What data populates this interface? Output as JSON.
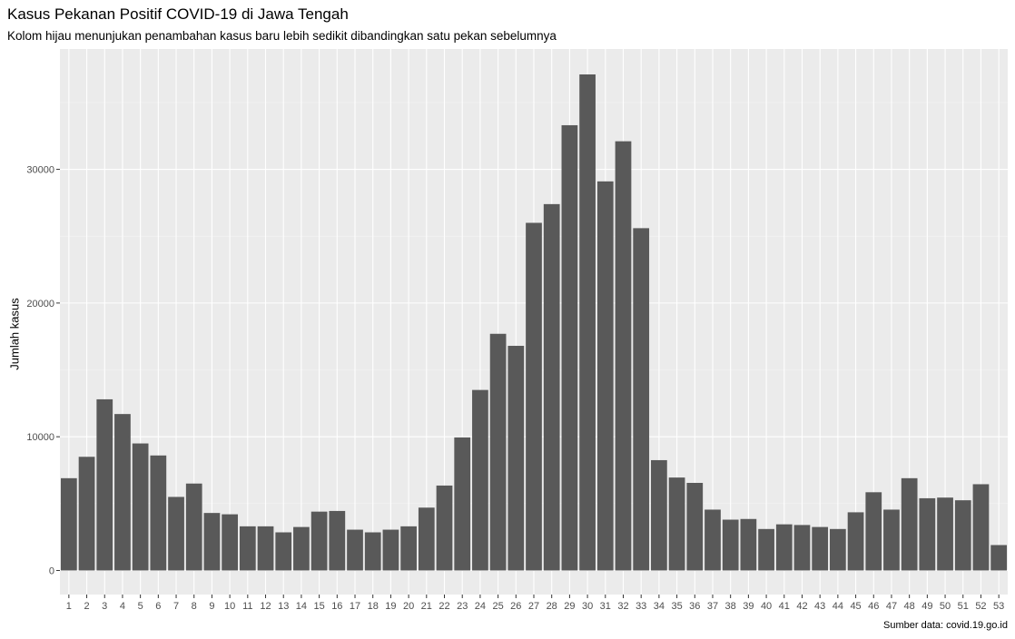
{
  "chart_data": {
    "type": "bar",
    "title": "Kasus Pekanan Positif COVID-19 di Jawa Tengah",
    "subtitle": "Kolom hijau menunjukan penambahan kasus baru lebih sedikit dibandingkan satu pekan sebelumnya",
    "xlabel": "",
    "ylabel": "Jumlah kasus",
    "caption": "Sumber data: covid.19.go.id",
    "categories": [
      "1",
      "2",
      "3",
      "4",
      "5",
      "6",
      "7",
      "8",
      "9",
      "10",
      "11",
      "12",
      "13",
      "14",
      "15",
      "16",
      "17",
      "18",
      "19",
      "20",
      "21",
      "22",
      "23",
      "24",
      "25",
      "26",
      "27",
      "28",
      "29",
      "30",
      "31",
      "32",
      "33",
      "34",
      "35",
      "36",
      "37",
      "38",
      "39",
      "40",
      "41",
      "42",
      "43",
      "44",
      "45",
      "46",
      "47",
      "48",
      "49",
      "50",
      "51",
      "52",
      "53"
    ],
    "values": [
      6900,
      8500,
      12800,
      11700,
      9500,
      8600,
      5500,
      6500,
      4300,
      4200,
      3300,
      3300,
      2850,
      3250,
      4400,
      4450,
      3050,
      2850,
      3050,
      3300,
      4700,
      6350,
      9950,
      13500,
      17700,
      16800,
      26000,
      27400,
      33300,
      37100,
      29100,
      32100,
      25600,
      8250,
      6950,
      6550,
      4550,
      3800,
      3850,
      3100,
      3450,
      3400,
      3250,
      3100,
      4350,
      5850,
      4550,
      6900,
      5400,
      5450,
      5250,
      6450,
      1900
    ],
    "yticks": [
      0,
      10000,
      20000,
      30000
    ],
    "ytick_labels": [
      "0",
      "10000",
      "20000",
      "30000"
    ],
    "ylim": [
      -1800,
      39000
    ],
    "grid": true,
    "legend": "none",
    "colors": {
      "bar": "#595959",
      "panel": "#ebebeb",
      "grid_major": "#ffffff",
      "grid_minor": "#f4f4f4",
      "tick_text": "#4d4d4d"
    }
  }
}
